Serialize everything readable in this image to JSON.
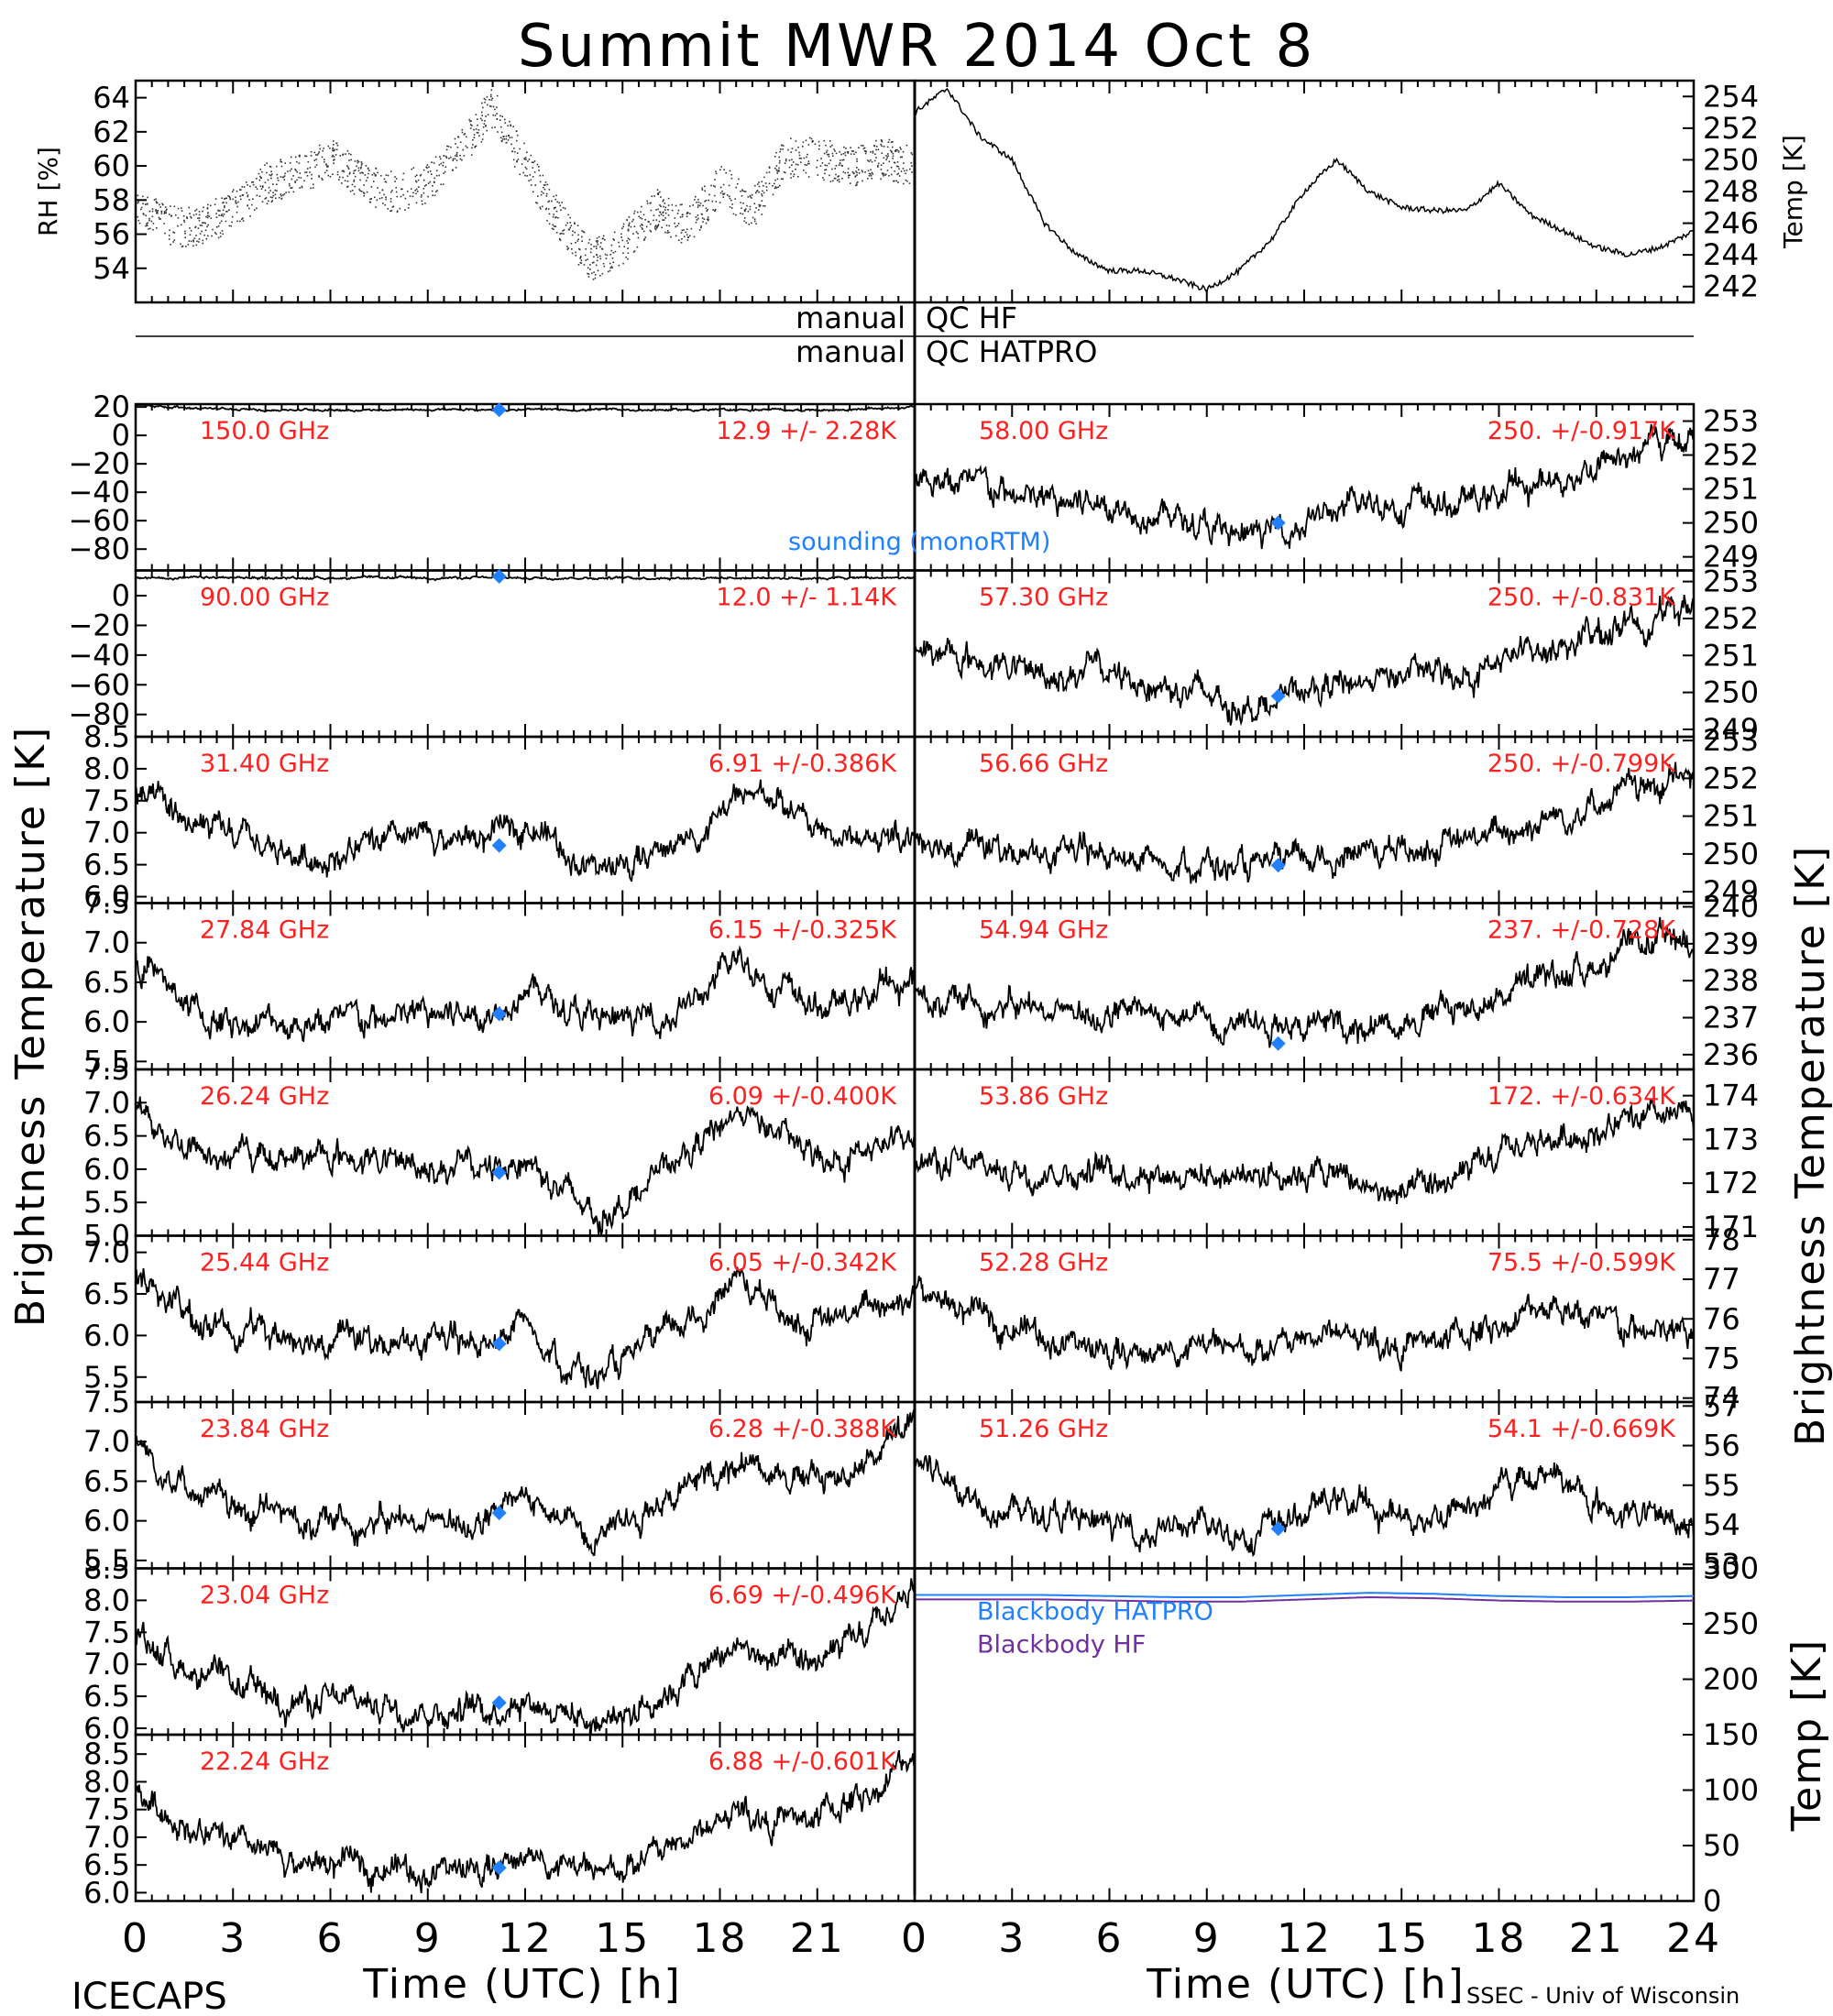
{
  "title": "Summit MWR 2014 Oct  8",
  "footer": {
    "left": "ICECAPS",
    "right": "SSEC - Univ of Wisconsin"
  },
  "qc": {
    "line1_left": "manual",
    "line1_right": "QC HF",
    "line2_left": "manual",
    "line2_right": "QC HATPRO"
  },
  "colors": {
    "stats": "#ff2020",
    "sounding": "#2080ff",
    "hatpro": "#2080ff",
    "hf": "#7030a0",
    "data": "#000000"
  },
  "chart_data": [
    {
      "id": "rh",
      "type": "scatter",
      "ylabel": "RH [%]",
      "xlim": [
        0,
        24
      ],
      "ylim": [
        52,
        65
      ],
      "yticks": [
        54,
        56,
        58,
        60,
        62,
        64
      ],
      "x": [
        0,
        1,
        2,
        3,
        4,
        5,
        6,
        7,
        8,
        9,
        10,
        11,
        12,
        13,
        14,
        15,
        16,
        17,
        18,
        19,
        20,
        21,
        22,
        23,
        24
      ],
      "y": [
        58,
        56.5,
        56.5,
        57.5,
        59,
        59.5,
        60.5,
        59,
        58.5,
        59,
        61,
        63.5,
        60,
        57,
        54.5,
        55.5,
        57.5,
        56.5,
        59,
        57.5,
        60.5,
        60.5,
        60,
        60.5,
        60
      ]
    },
    {
      "id": "temp",
      "type": "line",
      "ylabel": "Temp [K]",
      "xlim": [
        0,
        24
      ],
      "ylim": [
        241,
        255
      ],
      "yticks": [
        242,
        244,
        246,
        248,
        250,
        252,
        254
      ],
      "x": [
        0,
        1,
        2,
        3,
        4,
        5,
        6,
        7,
        8,
        9,
        10,
        11,
        12,
        13,
        14,
        15,
        16,
        17,
        18,
        19,
        20,
        21,
        22,
        23,
        24
      ],
      "y": [
        253,
        254.5,
        251.5,
        250,
        246,
        244,
        243,
        243,
        242.5,
        241.8,
        243,
        245,
        248,
        250,
        248,
        247,
        246.8,
        246.8,
        248.5,
        246.5,
        245.5,
        244.5,
        244,
        244.5,
        245.5
      ]
    },
    {
      "id": "bb",
      "type": "line",
      "ylabel": "Temp [K]",
      "xlim": [
        0,
        24
      ],
      "ylim": [
        0,
        300
      ],
      "yticks": [
        0,
        50,
        100,
        150,
        200,
        250,
        300
      ],
      "x": [
        0,
        4,
        8,
        10,
        12,
        14,
        16,
        18,
        20,
        22,
        24
      ],
      "series": [
        {
          "name": "Blackbody HATPRO",
          "values": [
            276,
            276,
            274,
            274,
            276,
            278,
            277,
            275,
            274,
            274,
            275
          ]
        },
        {
          "name": "Blackbody HF",
          "values": [
            272,
            272,
            270,
            270,
            272,
            274,
            273,
            271,
            270,
            270,
            271
          ]
        }
      ]
    }
  ],
  "channels_left": [
    {
      "freq": "150.0 GHz",
      "stat": "12.9 +/-  2.28K",
      "ylim": [
        -95,
        22
      ],
      "ticks": [
        20,
        0,
        -20,
        -40,
        -60,
        -80
      ],
      "labels": [
        "20",
        "0",
        "−20",
        "−40",
        "−60",
        "−80"
      ],
      "snd": 18,
      "series": [
        22,
        20,
        19,
        18,
        18,
        18,
        18,
        18,
        18,
        18,
        18,
        18,
        18,
        18,
        18,
        18,
        18,
        18,
        18,
        18,
        18,
        19,
        20
      ]
    },
    {
      "freq": "90.00 GHz",
      "stat": "12.0 +/-  1.14K",
      "ylim": [
        -95,
        17
      ],
      "ticks": [
        0,
        -20,
        -40,
        -60,
        -80
      ],
      "labels": [
        "0",
        "−20",
        "−40",
        "−60",
        "−80"
      ],
      "snd": 13,
      "series": [
        12,
        12,
        12,
        12,
        12,
        12,
        12,
        12,
        12,
        12,
        12,
        12,
        12,
        12,
        12,
        12,
        12,
        12,
        12,
        12,
        12,
        12,
        12
      ]
    },
    {
      "freq": "31.40 GHz",
      "stat": "6.91 +/-0.386K",
      "ylim": [
        5.9,
        8.5
      ],
      "ticks": [
        8.5,
        8.0,
        7.5,
        7.0,
        6.5,
        6.0
      ],
      "labels": [
        "8.5",
        "8.0",
        "7.5",
        "7.0",
        "6.5",
        "6.0"
      ],
      "snd": 6.8,
      "series": [
        7.6,
        7.3,
        7.0,
        6.9,
        6.7,
        6.6,
        6.7,
        6.8,
        6.9,
        6.9,
        6.9,
        7.2,
        6.8,
        6.4,
        6.5,
        6.8,
        7.0,
        7.5,
        7.6,
        7.1,
        6.9,
        6.9,
        7.0
      ]
    },
    {
      "freq": "27.84 GHz",
      "stat": "6.15 +/-0.325K",
      "ylim": [
        5.4,
        7.5
      ],
      "ticks": [
        7.5,
        7.0,
        6.5,
        6.0,
        5.5
      ],
      "labels": [
        "7.5",
        "7.0",
        "6.5",
        "6.0",
        "5.5"
      ],
      "snd": 6.1,
      "series": [
        6.8,
        6.4,
        6.0,
        6.0,
        6.0,
        6.0,
        6.0,
        6.0,
        6.1,
        6.1,
        6.1,
        6.5,
        6.2,
        6.0,
        6.0,
        6.1,
        6.3,
        6.8,
        6.5,
        6.2,
        6.2,
        6.4,
        6.5
      ]
    },
    {
      "freq": "26.24 GHz",
      "stat": "6.09 +/-0.400K",
      "ylim": [
        5.0,
        7.5
      ],
      "ticks": [
        7.5,
        7.0,
        6.5,
        6.0,
        5.5,
        5.0
      ],
      "labels": [
        "7.5",
        "7.0",
        "6.5",
        "6.0",
        "5.5",
        "5.0"
      ],
      "snd": 5.95,
      "series": [
        7.0,
        6.5,
        6.2,
        6.2,
        6.2,
        6.2,
        6.2,
        6.1,
        6.1,
        6.0,
        6.0,
        6.2,
        5.7,
        5.3,
        5.6,
        6.0,
        6.4,
        6.9,
        6.6,
        6.2,
        6.2,
        6.3,
        6.5
      ]
    },
    {
      "freq": "25.44 GHz",
      "stat": "6.05 +/-0.342K",
      "ylim": [
        5.2,
        7.2
      ],
      "ticks": [
        7.0,
        6.5,
        6.0,
        5.5
      ],
      "labels": [
        "7.0",
        "6.5",
        "6.0",
        "5.5"
      ],
      "snd": 5.9,
      "series": [
        6.8,
        6.4,
        6.1,
        6.1,
        6.0,
        6.0,
        6.0,
        5.9,
        5.9,
        5.9,
        5.9,
        6.2,
        5.7,
        5.5,
        5.7,
        6.0,
        6.3,
        6.7,
        6.4,
        6.1,
        6.2,
        6.4,
        6.5
      ]
    },
    {
      "freq": "23.84 GHz",
      "stat": "6.28 +/-0.388K",
      "ylim": [
        5.4,
        7.5
      ],
      "ticks": [
        7.5,
        7.0,
        6.5,
        6.0,
        5.5
      ],
      "labels": [
        "7.5",
        "7.0",
        "6.5",
        "6.0",
        "5.5"
      ],
      "snd": 6.1,
      "series": [
        7.0,
        6.6,
        6.3,
        6.1,
        6.1,
        6.0,
        6.0,
        6.0,
        6.0,
        6.0,
        6.0,
        6.3,
        6.0,
        5.9,
        6.1,
        6.3,
        6.5,
        6.8,
        6.7,
        6.5,
        6.6,
        6.9,
        7.2
      ]
    },
    {
      "freq": "23.04 GHz",
      "stat": "6.69 +/-0.496K",
      "ylim": [
        5.9,
        8.5
      ],
      "ticks": [
        8.5,
        8.0,
        7.5,
        7.0,
        6.5,
        6.0
      ],
      "labels": [
        "8.5",
        "8.0",
        "7.5",
        "7.0",
        "6.5",
        "6.0"
      ],
      "snd": 6.4,
      "series": [
        7.5,
        7.1,
        6.8,
        6.6,
        6.5,
        6.4,
        6.4,
        6.4,
        6.3,
        6.3,
        6.3,
        6.5,
        6.3,
        6.1,
        6.3,
        6.6,
        6.9,
        7.3,
        7.0,
        7.0,
        7.2,
        7.6,
        8.2
      ]
    },
    {
      "freq": "22.24 GHz",
      "stat": "6.88 +/-0.601K",
      "ylim": [
        5.85,
        8.85
      ],
      "ticks": [
        8.5,
        8.0,
        7.5,
        7.0,
        6.5,
        6.0
      ],
      "labels": [
        "8.5",
        "8.0",
        "7.5",
        "7.0",
        "6.5",
        "6.0"
      ],
      "snd": 6.45,
      "series": [
        7.8,
        7.4,
        7.0,
        6.8,
        6.6,
        6.5,
        6.5,
        6.5,
        6.4,
        6.4,
        6.4,
        6.7,
        6.5,
        6.3,
        6.5,
        6.8,
        7.1,
        7.5,
        7.3,
        7.3,
        7.6,
        7.9,
        8.5
      ]
    }
  ],
  "channels_right": [
    {
      "freq": "58.00 GHz",
      "stat": "250. +/-0.917K",
      "ylim": [
        248.6,
        253.5
      ],
      "ticks": [
        253,
        252,
        251,
        250,
        249
      ],
      "labels": [
        "253",
        "252",
        "251",
        "250",
        "249"
      ],
      "snd": 250.0,
      "series": [
        251.5,
        251.2,
        251.0,
        250.7,
        250.6,
        250.6,
        250.5,
        250.3,
        250.0,
        249.5,
        249.7,
        250.1,
        250.3,
        250.6,
        250.6,
        250.5,
        250.7,
        251.0,
        251.2,
        251.6,
        252.0,
        252.3,
        252.6
      ]
    },
    {
      "freq": "57.30 GHz",
      "stat": "250. +/-0.831K",
      "ylim": [
        248.8,
        253.3
      ],
      "ticks": [
        253,
        252,
        251,
        250,
        249
      ],
      "labels": [
        "253",
        "252",
        "251",
        "250",
        "249"
      ],
      "snd": 249.9,
      "series": [
        251.2,
        251.0,
        250.8,
        250.6,
        250.5,
        250.6,
        250.4,
        250.2,
        250.0,
        249.7,
        249.7,
        250.0,
        250.2,
        250.4,
        250.5,
        250.5,
        250.6,
        251.0,
        251.2,
        251.5,
        251.8,
        252.0,
        252.4
      ]
    },
    {
      "freq": "56.66 GHz",
      "stat": "250. +/-0.799K",
      "ylim": [
        248.7,
        253.1
      ],
      "ticks": [
        253,
        252,
        251,
        250,
        249
      ],
      "labels": [
        "253",
        "252",
        "251",
        "250",
        "249"
      ],
      "snd": 249.7,
      "series": [
        250.5,
        250.3,
        250.2,
        250.0,
        249.9,
        250.0,
        249.9,
        249.8,
        249.8,
        249.6,
        249.6,
        249.8,
        250.0,
        250.1,
        250.2,
        250.2,
        250.4,
        250.7,
        251.0,
        251.3,
        251.6,
        251.8,
        252.0
      ]
    },
    {
      "freq": "54.94 GHz",
      "stat": "237. +/-0.728K",
      "ylim": [
        235.6,
        240.1
      ],
      "ticks": [
        240,
        239,
        238,
        237,
        236
      ],
      "labels": [
        "240",
        "239",
        "238",
        "237",
        "236"
      ],
      "snd": 236.3,
      "series": [
        237.6,
        237.5,
        237.4,
        237.3,
        237.2,
        237.1,
        237.1,
        237.0,
        237.0,
        237.0,
        237.0,
        236.8,
        236.8,
        236.9,
        237.0,
        237.2,
        237.4,
        237.8,
        238.1,
        238.4,
        238.7,
        239.0,
        239.2
      ]
    },
    {
      "freq": "53.86 GHz",
      "stat": "172. +/-0.634K",
      "ylim": [
        170.8,
        174.6
      ],
      "ticks": [
        174,
        173,
        172,
        171
      ],
      "labels": [
        "174",
        "173",
        "172",
        "171"
      ],
      "snd": null,
      "series": [
        172.5,
        172.4,
        172.3,
        172.3,
        172.3,
        172.3,
        172.3,
        172.3,
        172.2,
        172.2,
        172.3,
        172.3,
        172.2,
        171.8,
        171.7,
        172.0,
        172.3,
        172.8,
        173.0,
        173.2,
        173.3,
        173.4,
        173.5
      ]
    },
    {
      "freq": "52.28 GHz",
      "stat": "75.5 +/-0.599K",
      "ylim": [
        73.9,
        78.1
      ],
      "ticks": [
        78,
        77,
        76,
        75,
        74
      ],
      "labels": [
        "78",
        "77",
        "76",
        "75",
        "74"
      ],
      "snd": null,
      "series": [
        76.8,
        76.3,
        76.0,
        75.8,
        75.5,
        75.2,
        75.1,
        75.2,
        75.3,
        75.2,
        75.2,
        75.5,
        75.7,
        75.4,
        75.3,
        75.5,
        75.7,
        76.0,
        76.5,
        76.0,
        75.7,
        75.6,
        75.6
      ]
    },
    {
      "freq": "51.26 GHz",
      "stat": "54.1 +/-0.669K",
      "ylim": [
        52.9,
        57.1
      ],
      "ticks": [
        57,
        56,
        55,
        54,
        53
      ],
      "labels": [
        "57",
        "56",
        "55",
        "54",
        "53"
      ],
      "snd": 53.9,
      "series": [
        55.7,
        55.1,
        54.6,
        54.4,
        54.2,
        54.0,
        53.9,
        53.9,
        53.9,
        53.8,
        53.9,
        54.3,
        54.7,
        54.3,
        54.2,
        54.3,
        54.6,
        55.1,
        55.4,
        54.6,
        54.3,
        54.2,
        54.1
      ]
    }
  ],
  "x_ticks_left": [
    "0",
    "3",
    "6",
    "9",
    "12",
    "15",
    "18",
    "21"
  ],
  "x_ticks_right": [
    "0",
    "3",
    "6",
    "9",
    "12",
    "15",
    "18",
    "21",
    "24"
  ],
  "xlabel": "Time (UTC) [h]",
  "ylabel_left": "Brightness Temperature [K]",
  "ylabel_right": "Brightness Temperature [K]",
  "sounding_label": "sounding (monoRTM)",
  "sounding_time": 11.2
}
